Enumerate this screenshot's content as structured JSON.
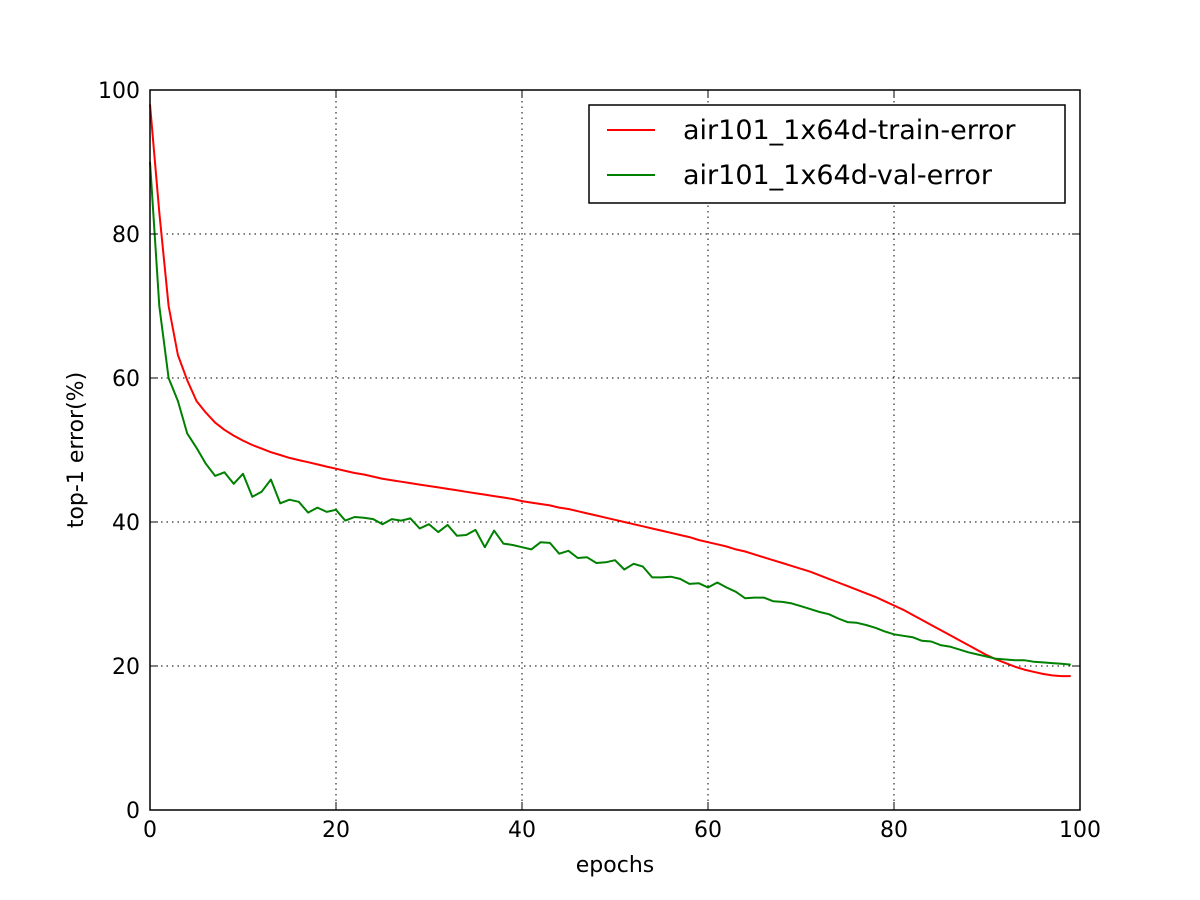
{
  "chart_data": {
    "type": "line",
    "xlabel": "epochs",
    "ylabel": "top-1 error(%)",
    "xlim": [
      0,
      100
    ],
    "ylim": [
      0,
      100
    ],
    "xticks": [
      0,
      20,
      40,
      60,
      80,
      100
    ],
    "yticks": [
      0,
      20,
      40,
      60,
      80,
      100
    ],
    "grid": true,
    "legend_position": "upper-right",
    "series": [
      {
        "name": "air101_1x64d-train-error",
        "color": "#ff0000",
        "x": [
          0,
          1,
          2,
          3,
          4,
          5,
          6,
          7,
          8,
          9,
          10,
          11,
          12,
          13,
          14,
          15,
          16,
          17,
          18,
          19,
          20,
          21,
          22,
          23,
          24,
          25,
          26,
          27,
          28,
          29,
          30,
          31,
          32,
          33,
          34,
          35,
          36,
          37,
          38,
          39,
          40,
          41,
          42,
          43,
          44,
          45,
          46,
          47,
          48,
          49,
          50,
          51,
          52,
          53,
          54,
          55,
          56,
          57,
          58,
          59,
          60,
          61,
          62,
          63,
          64,
          65,
          66,
          67,
          68,
          69,
          70,
          71,
          72,
          73,
          74,
          75,
          76,
          77,
          78,
          79,
          80,
          81,
          82,
          83,
          84,
          85,
          86,
          87,
          88,
          89,
          90,
          91,
          92,
          93,
          94,
          95,
          96,
          97,
          98,
          99
        ],
        "values": [
          98.0,
          83.0,
          70.0,
          63.2,
          59.7,
          56.8,
          55.2,
          53.8,
          52.8,
          52.0,
          51.3,
          50.7,
          50.2,
          49.7,
          49.3,
          48.9,
          48.6,
          48.3,
          48.0,
          47.7,
          47.4,
          47.1,
          46.8,
          46.6,
          46.3,
          46.0,
          45.8,
          45.6,
          45.4,
          45.2,
          45.0,
          44.8,
          44.6,
          44.4,
          44.2,
          44.0,
          43.8,
          43.6,
          43.4,
          43.2,
          42.9,
          42.7,
          42.5,
          42.3,
          42.0,
          41.8,
          41.5,
          41.2,
          40.9,
          40.6,
          40.3,
          40.0,
          39.7,
          39.4,
          39.1,
          38.8,
          38.5,
          38.2,
          37.9,
          37.5,
          37.2,
          36.9,
          36.6,
          36.2,
          35.9,
          35.5,
          35.1,
          34.7,
          34.3,
          33.9,
          33.5,
          33.1,
          32.6,
          32.1,
          31.6,
          31.1,
          30.6,
          30.1,
          29.6,
          29.0,
          28.4,
          27.8,
          27.1,
          26.4,
          25.7,
          25.0,
          24.3,
          23.6,
          22.9,
          22.2,
          21.5,
          20.9,
          20.4,
          19.9,
          19.5,
          19.2,
          18.9,
          18.7,
          18.6,
          18.6
        ]
      },
      {
        "name": "air101_1x64d-val-error",
        "color": "#008000",
        "x": [
          0,
          1,
          2,
          3,
          4,
          5,
          6,
          7,
          8,
          9,
          10,
          11,
          12,
          13,
          14,
          15,
          16,
          17,
          18,
          19,
          20,
          21,
          22,
          23,
          24,
          25,
          26,
          27,
          28,
          29,
          30,
          31,
          32,
          33,
          34,
          35,
          36,
          37,
          38,
          39,
          40,
          41,
          42,
          43,
          44,
          45,
          46,
          47,
          48,
          49,
          50,
          51,
          52,
          53,
          54,
          55,
          56,
          57,
          58,
          59,
          60,
          61,
          62,
          63,
          64,
          65,
          66,
          67,
          68,
          69,
          70,
          71,
          72,
          73,
          74,
          75,
          76,
          77,
          78,
          79,
          80,
          81,
          82,
          83,
          84,
          85,
          86,
          87,
          88,
          89,
          90,
          91,
          92,
          93,
          94,
          95,
          96,
          97,
          98,
          99
        ],
        "values": [
          90.0,
          70.0,
          60.0,
          56.8,
          52.3,
          50.3,
          48.1,
          46.4,
          46.9,
          45.3,
          46.7,
          43.5,
          44.2,
          45.9,
          42.6,
          43.1,
          42.8,
          41.3,
          42.0,
          41.4,
          41.7,
          40.2,
          40.7,
          40.6,
          40.4,
          39.7,
          40.4,
          40.2,
          40.5,
          39.1,
          39.7,
          38.6,
          39.6,
          38.1,
          38.2,
          38.9,
          36.5,
          38.8,
          37.0,
          36.8,
          36.5,
          36.2,
          37.2,
          37.1,
          35.6,
          36.0,
          35.0,
          35.1,
          34.3,
          34.4,
          34.7,
          33.4,
          34.2,
          33.8,
          32.3,
          32.3,
          32.4,
          32.1,
          31.4,
          31.5,
          30.9,
          31.6,
          30.9,
          30.3,
          29.4,
          29.5,
          29.5,
          29.0,
          28.9,
          28.7,
          28.3,
          27.9,
          27.5,
          27.2,
          26.6,
          26.1,
          26.0,
          25.7,
          25.3,
          24.8,
          24.4,
          24.2,
          24.0,
          23.5,
          23.4,
          22.9,
          22.7,
          22.3,
          21.9,
          21.6,
          21.3,
          21.0,
          20.9,
          20.8,
          20.8,
          20.6,
          20.5,
          20.4,
          20.3,
          20.2
        ]
      }
    ]
  }
}
